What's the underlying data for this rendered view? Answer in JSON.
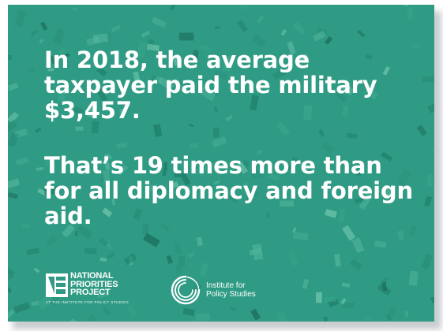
{
  "message": {
    "line1": "In 2018, the average taxpayer paid the military $3,457.",
    "line2": "That’s 19 times more than for all diplomacy and foreign aid."
  },
  "logos": {
    "npp": {
      "line1": "NATIONAL",
      "line2": "PRIORITIES",
      "line3": "PROJECT",
      "subtitle": "AT THE INSTITUTE FOR POLICY STUDIES"
    },
    "ips": {
      "line1": "Institute for",
      "line2": "Policy Studies"
    }
  },
  "colors": {
    "background": "#2f9b84",
    "text": "#ffffff"
  },
  "background_art": "falling-dollar-bills"
}
